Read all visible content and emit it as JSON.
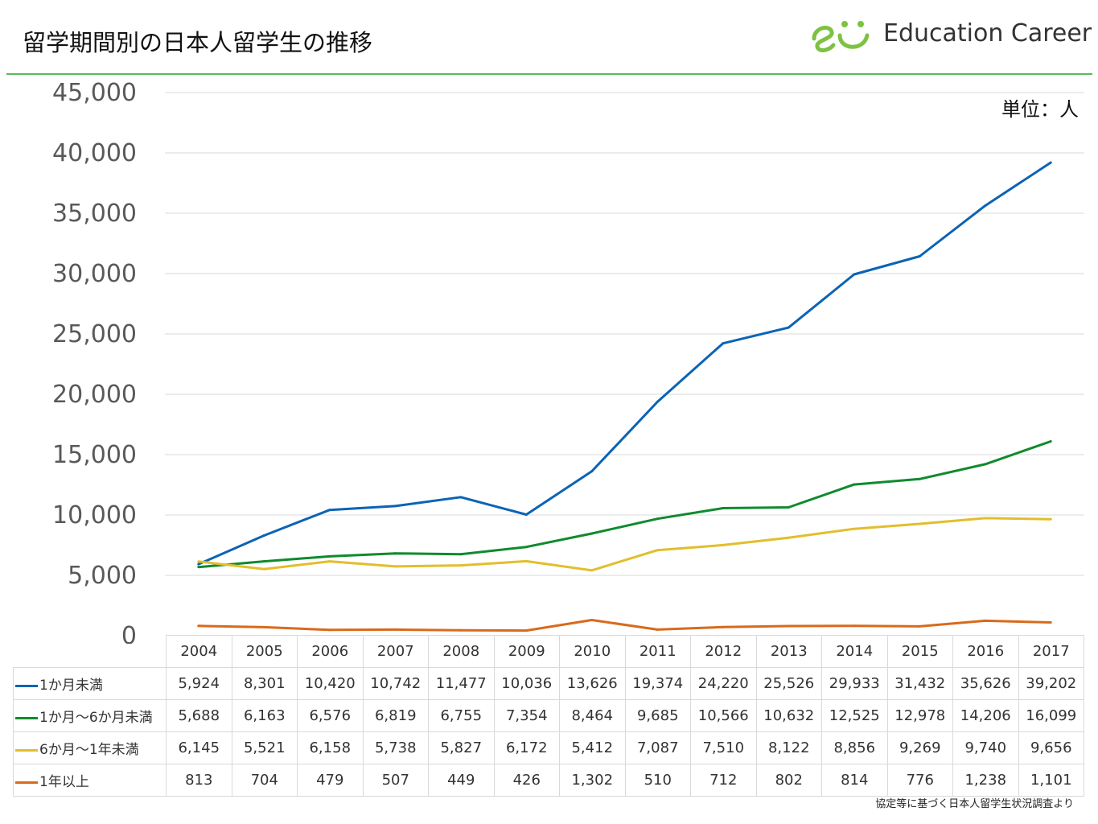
{
  "header": {
    "title": "留学期間別の日本人留学生の推移",
    "logo_text": "Education Career"
  },
  "unit_label": "単位：人",
  "source_note": "協定等に基づく日本人留学生状況調査より",
  "colors": {
    "under_1_month": "#0b63b5",
    "1_to_6_months": "#108a2e",
    "6_months_to_1_year": "#e2be2c",
    "over_1_year": "#d86a1c",
    "grid": "#d9d9d9",
    "logo_green": "#7dc242",
    "header_rule": "#5cb85c"
  },
  "chart_data": {
    "type": "line",
    "title": "留学期間別の日本人留学生の推移",
    "xlabel": "",
    "ylabel": "",
    "unit": "単位：人",
    "ylim": [
      0,
      45000
    ],
    "yticks": [
      "0",
      "5,000",
      "10,000",
      "15,000",
      "20,000",
      "25,000",
      "30,000",
      "35,000",
      "40,000",
      "45,000"
    ],
    "grid": true,
    "legend": "data-table",
    "categories": [
      "2004",
      "2005",
      "2006",
      "2007",
      "2008",
      "2009",
      "2010",
      "2011",
      "2012",
      "2013",
      "2014",
      "2015",
      "2016",
      "2017"
    ],
    "series": [
      {
        "name": "1か月未満",
        "color": "#0b63b5",
        "values": [
          5924,
          8301,
          10420,
          10742,
          11477,
          10036,
          13626,
          19374,
          24220,
          25526,
          29933,
          31432,
          35626,
          39202
        ],
        "labels": [
          "5,924",
          "8,301",
          "10,420",
          "10,742",
          "11,477",
          "10,036",
          "13,626",
          "19,374",
          "24,220",
          "25,526",
          "29,933",
          "31,432",
          "35,626",
          "39,202"
        ]
      },
      {
        "name": "1か月～6か月未満",
        "color": "#108a2e",
        "values": [
          5688,
          6163,
          6576,
          6819,
          6755,
          7354,
          8464,
          9685,
          10566,
          10632,
          12525,
          12978,
          14206,
          16099
        ],
        "labels": [
          "5,688",
          "6,163",
          "6,576",
          "6,819",
          "6,755",
          "7,354",
          "8,464",
          "9,685",
          "10,566",
          "10,632",
          "12,525",
          "12,978",
          "14,206",
          "16,099"
        ]
      },
      {
        "name": "6か月～1年未満",
        "color": "#e2be2c",
        "values": [
          6145,
          5521,
          6158,
          5738,
          5827,
          6172,
          5412,
          7087,
          7510,
          8122,
          8856,
          9269,
          9740,
          9656
        ],
        "labels": [
          "6,145",
          "5,521",
          "6,158",
          "5,738",
          "5,827",
          "6,172",
          "5,412",
          "7,087",
          "7,510",
          "8,122",
          "8,856",
          "9,269",
          "9,740",
          "9,656"
        ]
      },
      {
        "name": "1年以上",
        "color": "#d86a1c",
        "values": [
          813,
          704,
          479,
          507,
          449,
          426,
          1302,
          510,
          712,
          802,
          814,
          776,
          1238,
          1101
        ],
        "labels": [
          "813",
          "704",
          "479",
          "507",
          "449",
          "426",
          "1,302",
          "510",
          "712",
          "802",
          "814",
          "776",
          "1,238",
          "1,101"
        ]
      }
    ]
  }
}
